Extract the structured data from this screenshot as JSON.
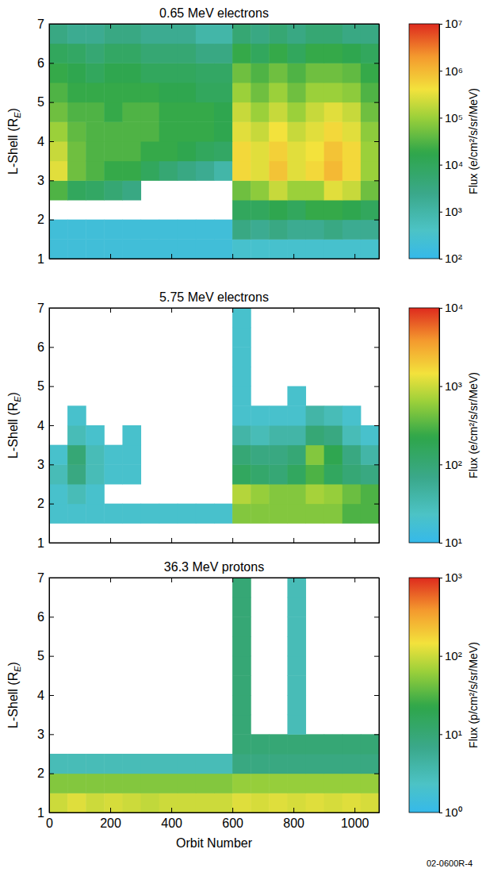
{
  "chart_data": [
    {
      "type": "heatmap",
      "title": "0.65 MeV electrons",
      "y_label": "L-Shell (RE)",
      "xlim": [
        0,
        1080
      ],
      "ylim": [
        1,
        7
      ],
      "xticks": [
        0,
        200,
        400,
        600,
        800,
        1000
      ],
      "yticks": [
        1,
        2,
        3,
        4,
        5,
        6,
        7
      ],
      "tick_labels": "y",
      "x_bins": [
        0,
        60,
        120,
        180,
        240,
        300,
        360,
        420,
        480,
        540,
        600,
        660,
        720,
        780,
        840,
        900,
        960,
        1020,
        1080
      ],
      "y_bins": [
        1,
        1.5,
        2,
        2.5,
        3,
        3.5,
        4,
        4.5,
        5,
        5.5,
        6,
        6.5,
        7
      ],
      "cells": [
        [
          200,
          200,
          200,
          200,
          200,
          200,
          200,
          200,
          200,
          200,
          300,
          300,
          300,
          300,
          300,
          300,
          300,
          300
        ],
        [
          200,
          200,
          200,
          200,
          200,
          200,
          200,
          200,
          200,
          200,
          3000,
          2000,
          3000,
          2000,
          2000,
          3000,
          2000,
          2000
        ],
        [
          null,
          null,
          null,
          null,
          null,
          null,
          null,
          null,
          null,
          null,
          10000,
          10000,
          15000,
          10000,
          20000,
          20000,
          15000,
          10000
        ],
        [
          30000,
          10000,
          8000,
          5000,
          3000,
          null,
          null,
          null,
          null,
          null,
          50000,
          80000,
          200000,
          100000,
          100000,
          300000,
          200000,
          50000
        ],
        [
          300000,
          50000,
          30000,
          20000,
          20000,
          10000,
          5000,
          3000,
          2000,
          1000,
          500000,
          300000,
          800000,
          300000,
          500000,
          1000000,
          500000,
          100000
        ],
        [
          200000,
          50000,
          30000,
          30000,
          30000,
          20000,
          20000,
          15000,
          10000,
          8000,
          500000,
          300000,
          600000,
          300000,
          400000,
          800000,
          500000,
          100000
        ],
        [
          100000,
          40000,
          30000,
          30000,
          30000,
          30000,
          20000,
          20000,
          20000,
          15000,
          300000,
          200000,
          400000,
          200000,
          300000,
          500000,
          300000,
          80000
        ],
        [
          50000,
          30000,
          30000,
          20000,
          30000,
          30000,
          20000,
          20000,
          20000,
          15000,
          200000,
          100000,
          200000,
          100000,
          200000,
          300000,
          200000,
          50000
        ],
        [
          30000,
          20000,
          20000,
          20000,
          20000,
          20000,
          15000,
          15000,
          10000,
          10000,
          100000,
          50000,
          100000,
          50000,
          100000,
          100000,
          80000,
          30000
        ],
        [
          20000,
          15000,
          10000,
          15000,
          15000,
          10000,
          10000,
          10000,
          8000,
          8000,
          50000,
          30000,
          50000,
          30000,
          50000,
          50000,
          40000,
          20000
        ],
        [
          10000,
          8000,
          5000,
          8000,
          8000,
          5000,
          5000,
          5000,
          3000,
          3000,
          20000,
          10000,
          20000,
          10000,
          20000,
          20000,
          15000,
          10000
        ],
        [
          3000,
          2000,
          2000,
          3000,
          3000,
          2000,
          2000,
          2000,
          1000,
          1000,
          5000,
          3000,
          5000,
          3000,
          5000,
          5000,
          3000,
          3000
        ]
      ],
      "colorbar": {
        "label": "Flux (e/cm²/s/sr/MeV)",
        "range": [
          100,
          10000000
        ],
        "ticks": [
          {
            "value": 100,
            "label": "10²"
          },
          {
            "value": 1000,
            "label": "10³"
          },
          {
            "value": 10000,
            "label": "10⁴"
          },
          {
            "value": 100000,
            "label": "10⁵"
          },
          {
            "value": 1000000,
            "label": "10⁶"
          },
          {
            "value": 10000000,
            "label": "10⁷"
          }
        ]
      }
    },
    {
      "type": "heatmap",
      "title": "5.75 MeV electrons",
      "y_label": "L-Shell (RE)",
      "xlim": [
        0,
        1080
      ],
      "ylim": [
        1,
        7
      ],
      "xticks": [
        0,
        200,
        400,
        600,
        800,
        1000
      ],
      "yticks": [
        1,
        2,
        3,
        4,
        5,
        6,
        7
      ],
      "tick_labels": "y",
      "x_bins": [
        0,
        60,
        120,
        180,
        240,
        300,
        360,
        420,
        480,
        540,
        600,
        660,
        720,
        780,
        840,
        900,
        960,
        1020,
        1080
      ],
      "y_bins": [
        1,
        1.5,
        2,
        2.5,
        3,
        3.5,
        4,
        4.5,
        5,
        5.5,
        6,
        6.5,
        7
      ],
      "cells": [
        [
          null,
          null,
          null,
          null,
          null,
          null,
          null,
          null,
          null,
          null,
          null,
          null,
          null,
          null,
          null,
          null,
          null,
          null
        ],
        [
          20,
          20,
          20,
          20,
          20,
          20,
          20,
          20,
          20,
          20,
          500,
          500,
          500,
          500,
          500,
          500,
          300,
          300
        ],
        [
          20,
          30,
          20,
          null,
          null,
          null,
          null,
          null,
          null,
          null,
          800,
          600,
          500,
          500,
          700,
          600,
          400,
          300
        ],
        [
          30,
          80,
          30,
          20,
          20,
          null,
          null,
          null,
          null,
          null,
          150,
          120,
          100,
          150,
          300,
          150,
          100,
          80
        ],
        [
          20,
          100,
          30,
          20,
          20,
          null,
          null,
          null,
          null,
          null,
          100,
          80,
          80,
          100,
          500,
          200,
          80,
          40
        ],
        [
          null,
          30,
          20,
          null,
          20,
          null,
          null,
          null,
          null,
          null,
          40,
          30,
          40,
          40,
          100,
          80,
          30,
          20
        ],
        [
          null,
          20,
          null,
          null,
          null,
          null,
          null,
          null,
          null,
          null,
          20,
          20,
          20,
          20,
          40,
          30,
          20,
          null
        ],
        [
          null,
          null,
          null,
          null,
          null,
          null,
          null,
          null,
          null,
          null,
          20,
          null,
          null,
          20,
          null,
          null,
          null,
          null
        ],
        [
          null,
          null,
          null,
          null,
          null,
          null,
          null,
          null,
          null,
          null,
          20,
          null,
          null,
          null,
          null,
          null,
          null,
          null
        ],
        [
          null,
          null,
          null,
          null,
          null,
          null,
          null,
          null,
          null,
          null,
          20,
          null,
          null,
          null,
          null,
          null,
          null,
          null
        ],
        [
          null,
          null,
          null,
          null,
          null,
          null,
          null,
          null,
          null,
          null,
          20,
          null,
          null,
          null,
          null,
          null,
          null,
          null
        ],
        [
          null,
          null,
          null,
          null,
          null,
          null,
          null,
          null,
          null,
          null,
          20,
          null,
          null,
          null,
          null,
          null,
          null,
          null
        ]
      ],
      "colorbar": {
        "label": "Flux (e/cm²/s/sr/MeV)",
        "range": [
          10,
          10000
        ],
        "ticks": [
          {
            "value": 10,
            "label": "10¹"
          },
          {
            "value": 100,
            "label": "10²"
          },
          {
            "value": 1000,
            "label": "10³"
          },
          {
            "value": 10000,
            "label": "10⁴"
          }
        ]
      }
    },
    {
      "type": "heatmap",
      "title": "36.3 MeV protons",
      "x_label": "Orbit Number",
      "y_label": "L-Shell (RE)",
      "xlim": [
        0,
        1080
      ],
      "ylim": [
        1,
        7
      ],
      "xticks": [
        0,
        200,
        400,
        600,
        800,
        1000
      ],
      "yticks": [
        1,
        2,
        3,
        4,
        5,
        6,
        7
      ],
      "x_bins": [
        0,
        60,
        120,
        180,
        240,
        300,
        360,
        420,
        480,
        540,
        600,
        660,
        720,
        780,
        840,
        900,
        960,
        1020,
        1080
      ],
      "y_bins": [
        1,
        1.5,
        2,
        2.5,
        3,
        3.5,
        4,
        4.5,
        5,
        5.5,
        6,
        6.5,
        7
      ],
      "cells": [
        [
          100,
          120,
          100,
          110,
          100,
          90,
          100,
          100,
          100,
          100,
          120,
          110,
          120,
          110,
          120,
          110,
          120,
          110
        ],
        [
          50,
          50,
          50,
          50,
          50,
          50,
          50,
          50,
          50,
          50,
          60,
          60,
          60,
          60,
          60,
          60,
          60,
          60
        ],
        [
          3,
          3,
          3,
          3,
          3,
          3,
          3,
          3,
          3,
          3,
          8,
          8,
          8,
          8,
          8,
          8,
          8,
          8
        ],
        [
          null,
          null,
          null,
          null,
          null,
          null,
          null,
          null,
          null,
          null,
          10,
          10,
          10,
          10,
          10,
          10,
          10,
          10
        ],
        [
          null,
          null,
          null,
          null,
          null,
          null,
          null,
          null,
          null,
          null,
          10,
          null,
          null,
          3,
          null,
          null,
          null,
          null
        ],
        [
          null,
          null,
          null,
          null,
          null,
          null,
          null,
          null,
          null,
          null,
          10,
          null,
          null,
          3,
          null,
          null,
          null,
          null
        ],
        [
          null,
          null,
          null,
          null,
          null,
          null,
          null,
          null,
          null,
          null,
          10,
          null,
          null,
          3,
          null,
          null,
          null,
          null
        ],
        [
          null,
          null,
          null,
          null,
          null,
          null,
          null,
          null,
          null,
          null,
          10,
          null,
          null,
          3,
          null,
          null,
          null,
          null
        ],
        [
          null,
          null,
          null,
          null,
          null,
          null,
          null,
          null,
          null,
          null,
          10,
          null,
          null,
          3,
          null,
          null,
          null,
          null
        ],
        [
          null,
          null,
          null,
          null,
          null,
          null,
          null,
          null,
          null,
          null,
          10,
          null,
          null,
          3,
          null,
          null,
          null,
          null
        ],
        [
          null,
          null,
          null,
          null,
          null,
          null,
          null,
          null,
          null,
          null,
          10,
          null,
          null,
          3,
          null,
          null,
          null,
          null
        ],
        [
          null,
          null,
          null,
          null,
          null,
          null,
          null,
          null,
          null,
          null,
          10,
          null,
          null,
          3,
          null,
          null,
          null,
          null
        ]
      ],
      "colorbar": {
        "label": "Flux (p/cm²/s/sr/MeV)",
        "range": [
          1,
          1000
        ],
        "ticks": [
          {
            "value": 1,
            "label": "10⁰"
          },
          {
            "value": 10,
            "label": "10¹"
          },
          {
            "value": 100,
            "label": "10²"
          },
          {
            "value": 1000,
            "label": "10³"
          }
        ]
      }
    }
  ],
  "footer": "02-0600R-4"
}
